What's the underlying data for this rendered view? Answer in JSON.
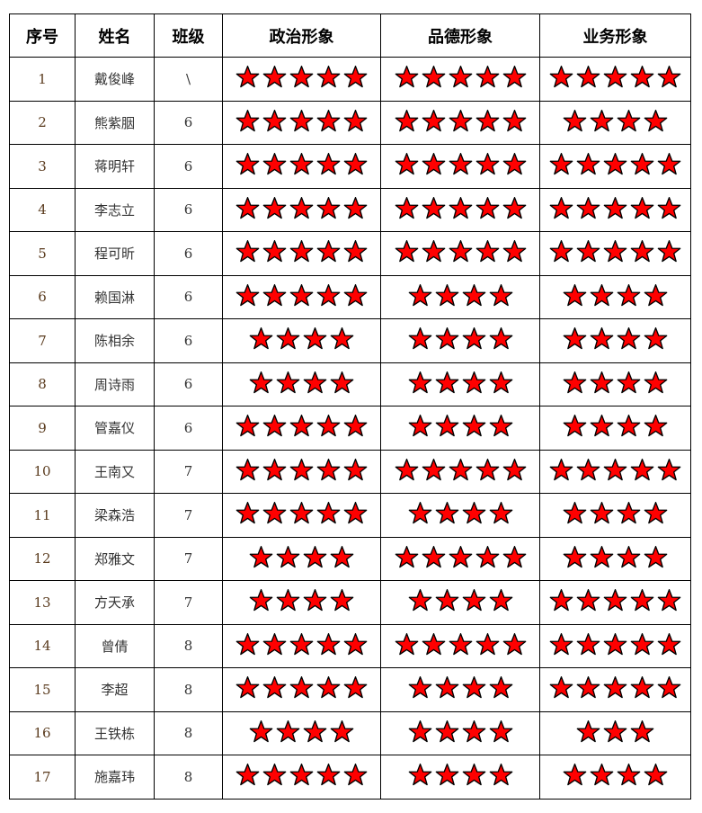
{
  "headers": [
    "序号",
    "姓名",
    "班级",
    "政治形象",
    "品德形象",
    "业务形象"
  ],
  "colors": {
    "star_fill": "#ff0000",
    "star_stroke": "#000000"
  },
  "rows": [
    {
      "seq": "1",
      "name": "戴俊峰",
      "class": "\\",
      "political": 5,
      "moral": 5,
      "business": 5
    },
    {
      "seq": "2",
      "name": "熊紫胭",
      "class": "6",
      "political": 5,
      "moral": 5,
      "business": 4
    },
    {
      "seq": "3",
      "name": "蒋明轩",
      "class": "6",
      "political": 5,
      "moral": 5,
      "business": 5
    },
    {
      "seq": "4",
      "name": "李志立",
      "class": "6",
      "political": 5,
      "moral": 5,
      "business": 5
    },
    {
      "seq": "5",
      "name": "程可昕",
      "class": "6",
      "political": 5,
      "moral": 5,
      "business": 5
    },
    {
      "seq": "6",
      "name": "赖国淋",
      "class": "6",
      "political": 5,
      "moral": 4,
      "business": 4
    },
    {
      "seq": "7",
      "name": "陈相余",
      "class": "6",
      "political": 4,
      "moral": 4,
      "business": 4
    },
    {
      "seq": "8",
      "name": "周诗雨",
      "class": "6",
      "political": 4,
      "moral": 4,
      "business": 4
    },
    {
      "seq": "9",
      "name": "管嘉仪",
      "class": "6",
      "political": 5,
      "moral": 4,
      "business": 4
    },
    {
      "seq": "10",
      "name": "王南又",
      "class": "7",
      "political": 5,
      "moral": 5,
      "business": 5
    },
    {
      "seq": "11",
      "name": "梁森浩",
      "class": "7",
      "political": 5,
      "moral": 4,
      "business": 4
    },
    {
      "seq": "12",
      "name": "郑雅文",
      "class": "7",
      "political": 4,
      "moral": 5,
      "business": 4
    },
    {
      "seq": "13",
      "name": "方天承",
      "class": "7",
      "political": 4,
      "moral": 4,
      "business": 5
    },
    {
      "seq": "14",
      "name": "曾倩",
      "class": "8",
      "political": 5,
      "moral": 5,
      "business": 5
    },
    {
      "seq": "15",
      "name": "李超",
      "class": "8",
      "political": 5,
      "moral": 4,
      "business": 5
    },
    {
      "seq": "16",
      "name": "王铁栋",
      "class": "8",
      "political": 4,
      "moral": 4,
      "business": 3
    },
    {
      "seq": "17",
      "name": "施嘉玮",
      "class": "8",
      "political": 5,
      "moral": 4,
      "business": 4
    }
  ]
}
